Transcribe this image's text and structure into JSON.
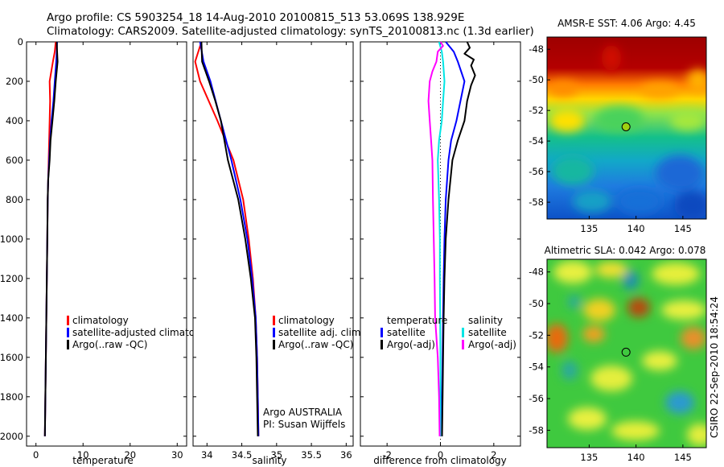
{
  "header": {
    "line1": "Argo profile: CS 5903254_18 14-Aug-2010 20100815_513 53.069S 138.929E",
    "line2": "Climatology: CARS2009. Satellite-adjusted climatology: synTS_20100813.nc (1.3d earlier)"
  },
  "side_label": "CSIRO 22-Sep-2010 18:54:24",
  "colors": {
    "climatology": "#ff0000",
    "satellite": "#0000ff",
    "argo": "#000000",
    "salinity_satellite": "#00e5e5",
    "salinity_argo": "#ff00ff",
    "marker": "#a0d010"
  },
  "chart_data": [
    {
      "type": "line",
      "id": "temperature_panel",
      "xlabel": "temperature",
      "ylabel": "",
      "xlim": [
        -2,
        32
      ],
      "ylim": [
        2050,
        0
      ],
      "y_reversed": true,
      "xticks": [
        "0",
        "10",
        "20",
        "30"
      ],
      "yticks": [
        "0",
        "200",
        "400",
        "600",
        "800",
        "1000",
        "1200",
        "1400",
        "1600",
        "1800",
        "2000"
      ],
      "legend": [
        "climatology",
        "satellite-adjusted climatology",
        "Argo(..raw -QC)"
      ],
      "series": [
        {
          "name": "climatology",
          "color_key": "climatology",
          "points": [
            [
              4.2,
              0
            ],
            [
              4.0,
              50
            ],
            [
              3.6,
              100
            ],
            [
              2.9,
              200
            ],
            [
              3.0,
              300
            ],
            [
              2.9,
              400
            ],
            [
              2.8,
              500
            ],
            [
              2.7,
              600
            ],
            [
              2.6,
              700
            ],
            [
              2.5,
              800
            ],
            [
              2.4,
              1000
            ],
            [
              2.3,
              1200
            ],
            [
              2.2,
              1400
            ],
            [
              2.1,
              1600
            ],
            [
              2.0,
              1800
            ],
            [
              1.9,
              2000
            ]
          ]
        },
        {
          "name": "satellite-adjusted climatology",
          "color_key": "satellite",
          "points": [
            [
              4.5,
              0
            ],
            [
              4.4,
              50
            ],
            [
              4.3,
              100
            ],
            [
              4.0,
              200
            ],
            [
              3.7,
              300
            ],
            [
              3.3,
              400
            ],
            [
              3.0,
              500
            ],
            [
              2.8,
              600
            ],
            [
              2.6,
              700
            ],
            [
              2.5,
              800
            ],
            [
              2.4,
              1000
            ],
            [
              2.3,
              1200
            ],
            [
              2.2,
              1400
            ],
            [
              2.1,
              1600
            ],
            [
              2.0,
              1800
            ],
            [
              1.9,
              2000
            ]
          ]
        },
        {
          "name": "Argo(..raw -QC)",
          "color_key": "argo",
          "points": [
            [
              4.4,
              0
            ],
            [
              4.5,
              50
            ],
            [
              4.6,
              100
            ],
            [
              4.2,
              200
            ],
            [
              3.9,
              300
            ],
            [
              3.5,
              400
            ],
            [
              3.1,
              500
            ],
            [
              2.9,
              600
            ],
            [
              2.6,
              700
            ],
            [
              2.5,
              800
            ],
            [
              2.4,
              1000
            ],
            [
              2.3,
              1200
            ],
            [
              2.2,
              1400
            ],
            [
              2.1,
              1600
            ],
            [
              2.0,
              1800
            ],
            [
              1.9,
              2000
            ]
          ]
        }
      ]
    },
    {
      "type": "line",
      "id": "salinity_panel",
      "xlabel": "salinity",
      "ylabel": "",
      "xlim": [
        33.8,
        36.1
      ],
      "ylim": [
        2050,
        0
      ],
      "y_reversed": true,
      "xticks": [
        "34",
        "34.5",
        "35",
        "35.5",
        "36"
      ],
      "legend": [
        "climatology",
        "satellite adj. clim.",
        "Argo(..raw -QC)"
      ],
      "annotations": [
        "Argo AUSTRALIA",
        "PI: Susan Wijffels"
      ],
      "series": [
        {
          "name": "climatology",
          "color_key": "climatology",
          "points": [
            [
              33.92,
              0
            ],
            [
              33.83,
              100
            ],
            [
              33.9,
              200
            ],
            [
              34.15,
              400
            ],
            [
              34.38,
              600
            ],
            [
              34.52,
              800
            ],
            [
              34.6,
              1000
            ],
            [
              34.66,
              1200
            ],
            [
              34.7,
              1400
            ],
            [
              34.72,
              1600
            ],
            [
              34.73,
              1800
            ],
            [
              34.74,
              2000
            ]
          ]
        },
        {
          "name": "satellite adj. clim.",
          "color_key": "satellite",
          "points": [
            [
              33.9,
              0
            ],
            [
              33.95,
              100
            ],
            [
              34.05,
              200
            ],
            [
              34.2,
              400
            ],
            [
              34.35,
              600
            ],
            [
              34.48,
              800
            ],
            [
              34.58,
              1000
            ],
            [
              34.65,
              1200
            ],
            [
              34.7,
              1400
            ],
            [
              34.72,
              1600
            ],
            [
              34.73,
              1800
            ],
            [
              34.74,
              2000
            ]
          ]
        },
        {
          "name": "Argo(..raw -QC)",
          "color_key": "argo",
          "points": [
            [
              33.92,
              0
            ],
            [
              33.93,
              100
            ],
            [
              34.03,
              200
            ],
            [
              34.12,
              300
            ],
            [
              34.2,
              400
            ],
            [
              34.3,
              600
            ],
            [
              34.45,
              800
            ],
            [
              34.55,
              1000
            ],
            [
              34.63,
              1200
            ],
            [
              34.69,
              1400
            ],
            [
              34.71,
              1600
            ],
            [
              34.72,
              1800
            ],
            [
              34.73,
              2000
            ]
          ]
        }
      ]
    },
    {
      "type": "line",
      "id": "difference_panel",
      "xlabel": "difference from climatology",
      "ylabel": "",
      "xlim": [
        -3.0,
        3.0
      ],
      "ylim": [
        2050,
        0
      ],
      "y_reversed": true,
      "xticks": [
        "-2",
        "0",
        "2"
      ],
      "legend_headers": [
        "temperature",
        "salinity"
      ],
      "legend": [
        "satellite",
        "Argo(-adj)",
        "satellite",
        "Argo(-adj)"
      ],
      "series": [
        {
          "name": "temperature satellite",
          "color_key": "satellite",
          "points": [
            [
              0.2,
              0
            ],
            [
              0.5,
              50
            ],
            [
              0.65,
              100
            ],
            [
              0.9,
              200
            ],
            [
              0.75,
              300
            ],
            [
              0.6,
              400
            ],
            [
              0.4,
              500
            ],
            [
              0.3,
              600
            ],
            [
              0.2,
              800
            ],
            [
              0.15,
              1000
            ],
            [
              0.12,
              1200
            ],
            [
              0.1,
              1400
            ],
            [
              0.08,
              1600
            ],
            [
              0.06,
              1800
            ],
            [
              0.05,
              2000
            ]
          ]
        },
        {
          "name": "temperature Argo(-adj)",
          "color_key": "argo",
          "points": [
            [
              1.0,
              0
            ],
            [
              1.1,
              30
            ],
            [
              0.9,
              60
            ],
            [
              1.25,
              90
            ],
            [
              1.15,
              120
            ],
            [
              1.3,
              170
            ],
            [
              1.15,
              220
            ],
            [
              1.0,
              300
            ],
            [
              0.9,
              400
            ],
            [
              0.65,
              500
            ],
            [
              0.45,
              600
            ],
            [
              0.3,
              800
            ],
            [
              0.2,
              1000
            ],
            [
              0.15,
              1200
            ],
            [
              0.12,
              1400
            ],
            [
              0.1,
              1600
            ],
            [
              0.08,
              1800
            ],
            [
              0.06,
              2000
            ]
          ]
        },
        {
          "name": "salinity satellite",
          "color_key": "salinity_satellite",
          "points": [
            [
              -0.05,
              0
            ],
            [
              0.05,
              50
            ],
            [
              0.1,
              100
            ],
            [
              0.15,
              200
            ],
            [
              0.1,
              300
            ],
            [
              0.05,
              400
            ],
            [
              -0.05,
              500
            ],
            [
              -0.1,
              600
            ],
            [
              -0.05,
              800
            ],
            [
              -0.02,
              1000
            ],
            [
              -0.02,
              1200
            ],
            [
              -0.01,
              1400
            ],
            [
              0.0,
              1600
            ],
            [
              0.0,
              1800
            ],
            [
              0.0,
              2000
            ]
          ]
        },
        {
          "name": "salinity Argo(-adj)",
          "color_key": "salinity_argo",
          "points": [
            [
              0.0,
              0
            ],
            [
              0.1,
              20
            ],
            [
              -0.1,
              50
            ],
            [
              -0.15,
              100
            ],
            [
              -0.3,
              150
            ],
            [
              -0.4,
              200
            ],
            [
              -0.45,
              300
            ],
            [
              -0.4,
              400
            ],
            [
              -0.35,
              500
            ],
            [
              -0.3,
              600
            ],
            [
              -0.28,
              800
            ],
            [
              -0.25,
              1000
            ],
            [
              -0.22,
              1200
            ],
            [
              -0.2,
              1400
            ],
            [
              -0.1,
              1600
            ],
            [
              -0.05,
              1800
            ],
            [
              -0.03,
              2000
            ]
          ]
        }
      ]
    },
    {
      "type": "heatmap",
      "id": "sst_map",
      "title": "AMSR-E SST: 4.06 Argo: 4.45",
      "xlim": [
        130.5,
        147.5
      ],
      "ylim": [
        -59.1,
        -47.2
      ],
      "xticks": [
        "135",
        "140",
        "145"
      ],
      "yticks": [
        "-48",
        "-50",
        "-52",
        "-54",
        "-56",
        "-58"
      ],
      "argo_position": {
        "lon": 138.929,
        "lat": -53.069
      }
    },
    {
      "type": "heatmap",
      "id": "sla_map",
      "title": "Altimetric SLA: 0.042 Argo: 0.078",
      "xlim": [
        130.5,
        147.5
      ],
      "ylim": [
        -59.1,
        -47.2
      ],
      "xticks": [
        "135",
        "140",
        "145"
      ],
      "yticks": [
        "-48",
        "-50",
        "-52",
        "-54",
        "-56",
        "-58"
      ],
      "argo_position": {
        "lon": 138.929,
        "lat": -53.069
      }
    }
  ]
}
